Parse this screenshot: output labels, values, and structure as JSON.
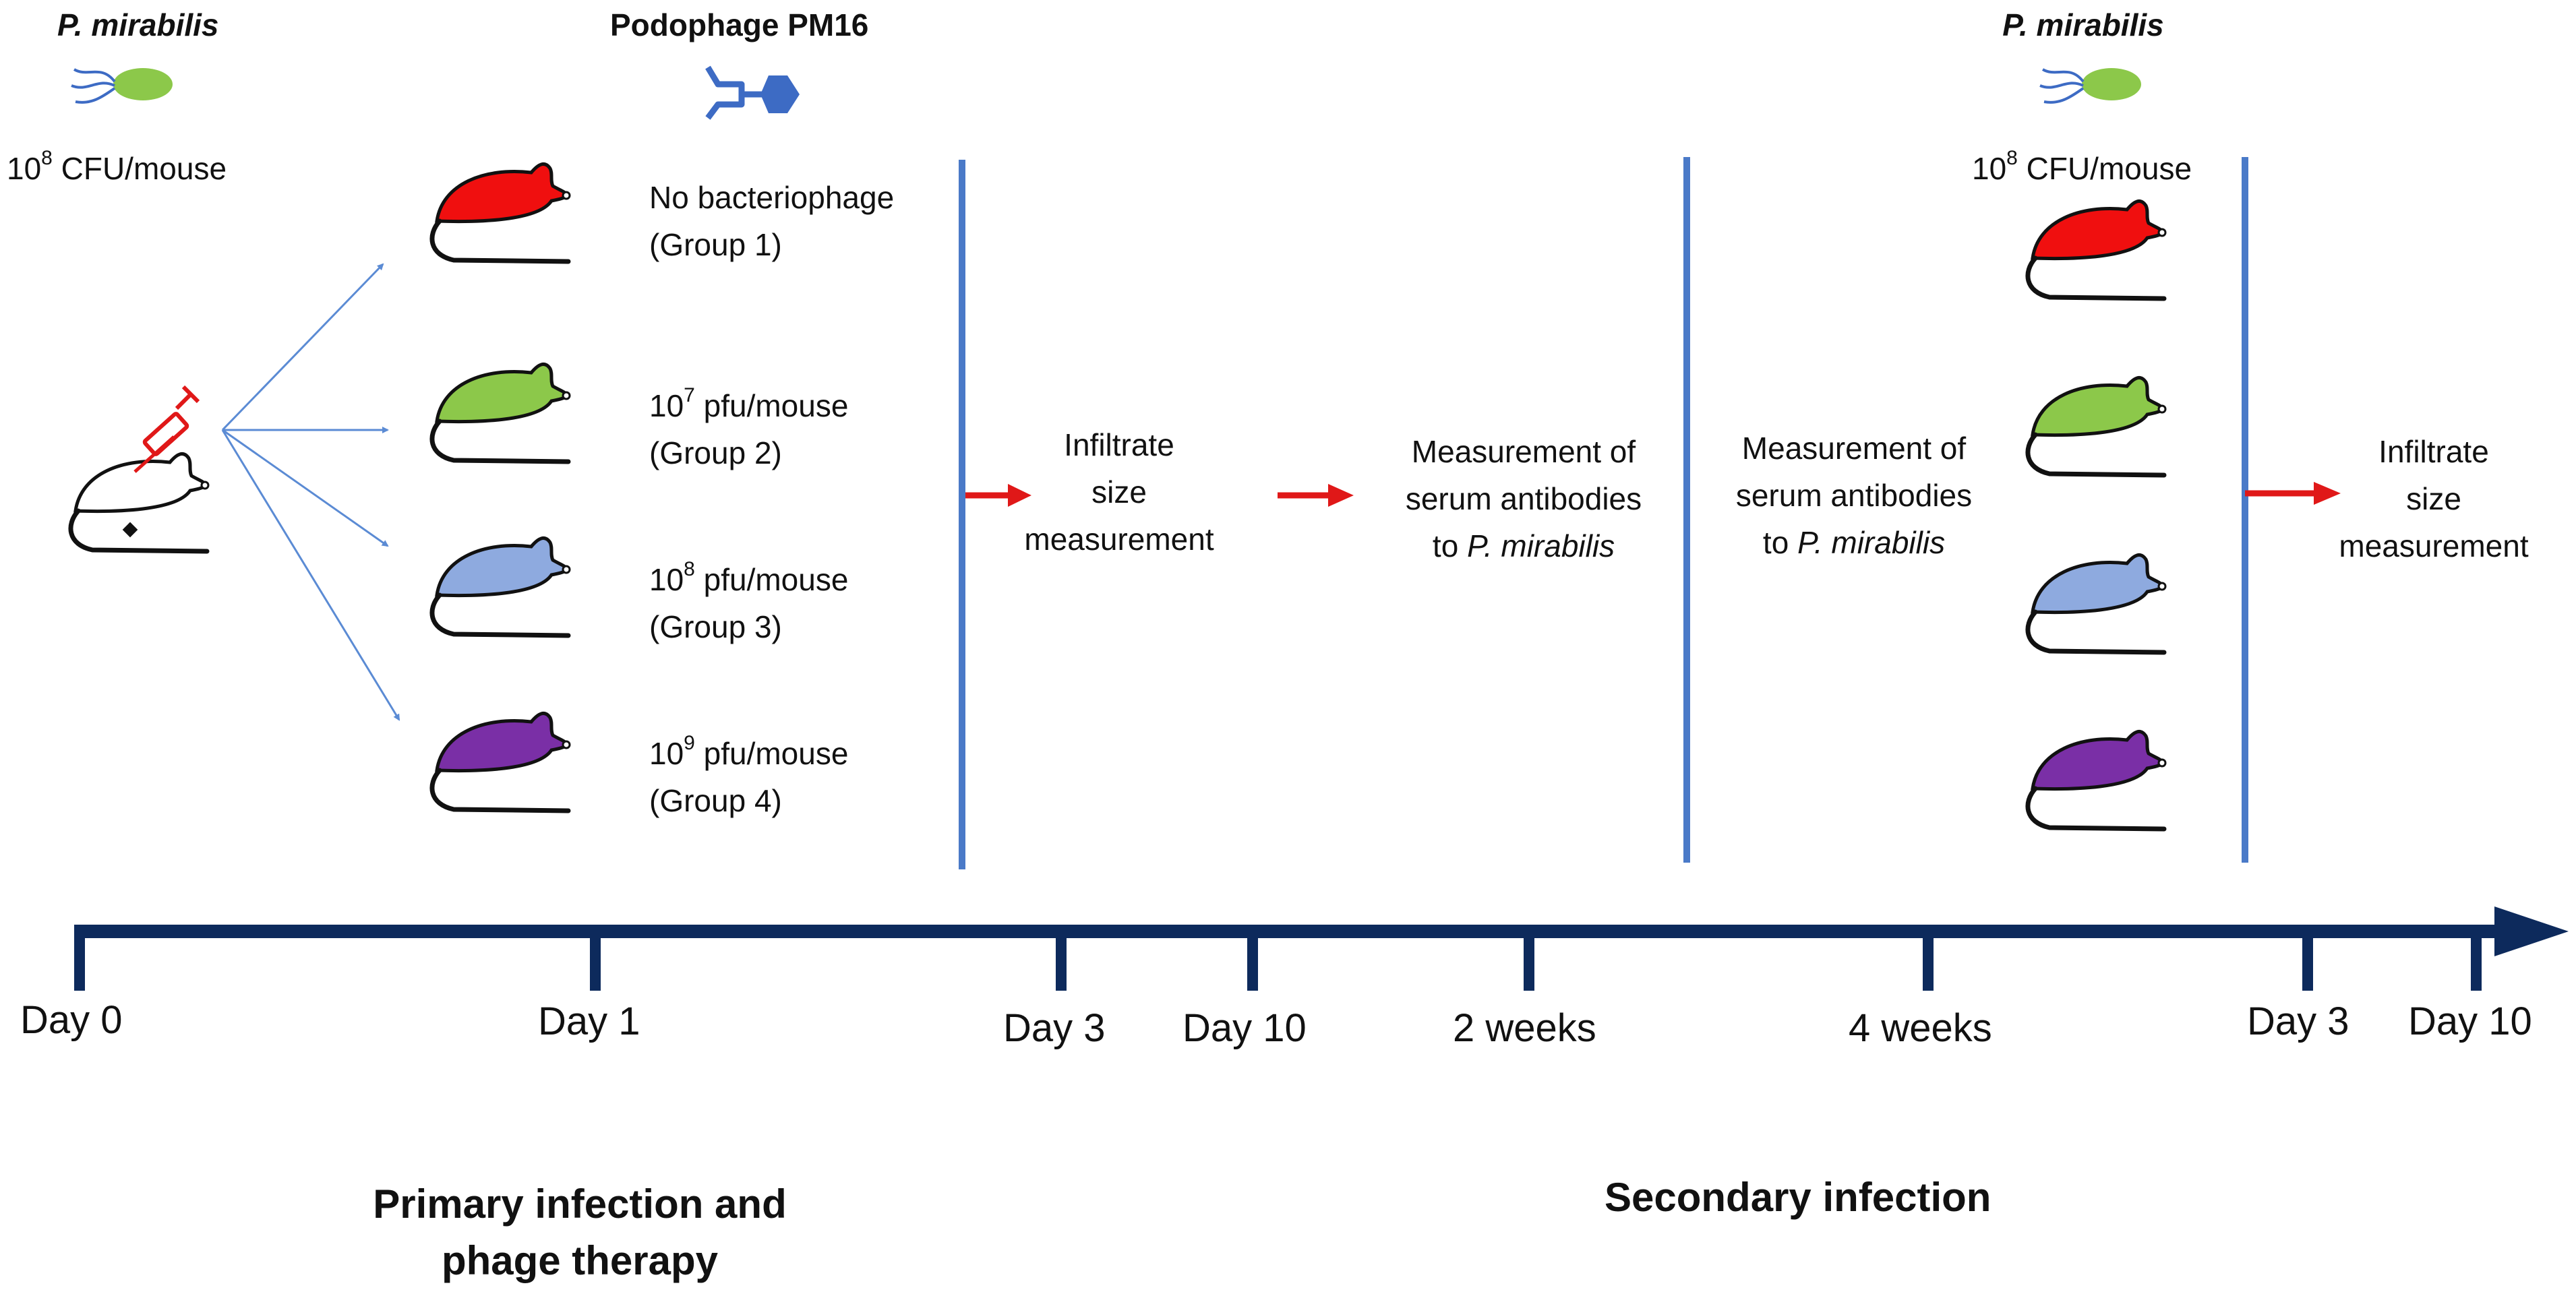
{
  "colors": {
    "timeline": "#0d2a5c",
    "divider": "#4a7ac8",
    "branch_arrow": "#5b8bd4",
    "red_arrow": "#e01818",
    "bacterium": "#8cc84a",
    "phage": "#3d6bc4",
    "mouse_group1": "#f00f0f",
    "mouse_group2": "#8cc84a",
    "mouse_group3": "#8eaadf",
    "mouse_group4": "#7a2fa6"
  },
  "primary": {
    "bacteria_name": "P. mirabilis",
    "dose_base": "10",
    "dose_exp": "8",
    "dose_unit": " CFU/mouse",
    "phage_name": "Podophage PM16"
  },
  "groups": [
    {
      "line1": "No bacteriophage",
      "line2": "(Group 1)"
    },
    {
      "dose_base": "10",
      "dose_exp": "7",
      "dose_unit": " pfu/mouse",
      "line2": "(Group 2)"
    },
    {
      "dose_base": "10",
      "dose_exp": "8",
      "dose_unit": " pfu/mouse",
      "line2": "(Group 3)"
    },
    {
      "dose_base": "10",
      "dose_exp": "9",
      "dose_unit": " pfu/mouse",
      "line2": "(Group 4)"
    }
  ],
  "steps": {
    "infiltrate_1": [
      "Infiltrate",
      "size",
      "measurement"
    ],
    "serum_1": {
      "line1": "Measurement of",
      "line2": "serum antibodies",
      "line3_prefix": "to ",
      "line3_italic": "P. mirabilis"
    },
    "serum_2": {
      "line1": "Measurement of",
      "line2": "serum antibodies",
      "line3_prefix": "to ",
      "line3_italic": "P. mirabilis"
    },
    "infiltrate_2": [
      "Infiltrate",
      "size",
      "measurement"
    ]
  },
  "secondary": {
    "bacteria_name": "P. mirabilis",
    "dose_base": "10",
    "dose_exp": "8",
    "dose_unit": " CFU/mouse"
  },
  "timeline": {
    "ticks": [
      "Day 0",
      "Day 1",
      "Day 3",
      "Day 10",
      "2 weeks",
      "4 weeks",
      "Day 3",
      "Day 10"
    ]
  },
  "phases": {
    "primary_line1": "Primary infection and",
    "primary_line2": "phage therapy",
    "secondary": "Secondary infection"
  }
}
